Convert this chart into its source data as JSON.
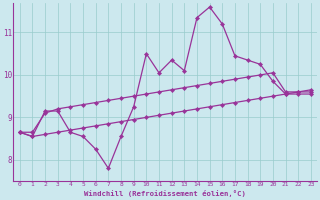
{
  "xlabel": "Windchill (Refroidissement éolien,°C)",
  "bg_color": "#cce8ee",
  "line_color": "#993399",
  "grid_color": "#99cccc",
  "xlim": [
    -0.5,
    23.5
  ],
  "ylim": [
    7.5,
    11.7
  ],
  "yticks": [
    8,
    9,
    10,
    11
  ],
  "xticks": [
    0,
    1,
    2,
    3,
    4,
    5,
    6,
    7,
    8,
    9,
    10,
    11,
    12,
    13,
    14,
    15,
    16,
    17,
    18,
    19,
    20,
    21,
    22,
    23
  ],
  "series1_x": [
    0,
    1,
    2,
    3,
    4,
    5,
    6,
    7,
    8,
    9,
    10,
    11,
    12,
    13,
    14,
    15,
    16,
    17,
    18,
    19,
    20,
    21,
    22,
    23
  ],
  "series1_y": [
    8.65,
    8.55,
    9.15,
    9.15,
    8.65,
    8.55,
    8.25,
    7.8,
    8.55,
    9.25,
    10.5,
    10.05,
    10.35,
    10.1,
    11.35,
    11.6,
    11.2,
    10.45,
    10.35,
    10.25,
    9.85,
    9.55,
    9.55,
    9.55
  ],
  "series2_x": [
    0,
    1,
    2,
    3,
    4,
    5,
    6,
    7,
    8,
    9,
    10,
    11,
    12,
    13,
    14,
    15,
    16,
    17,
    18,
    19,
    20,
    21,
    22,
    23
  ],
  "series2_y": [
    8.65,
    8.65,
    9.1,
    9.2,
    9.25,
    9.3,
    9.35,
    9.4,
    9.45,
    9.5,
    9.55,
    9.6,
    9.65,
    9.7,
    9.75,
    9.8,
    9.85,
    9.9,
    9.95,
    10.0,
    10.05,
    9.6,
    9.6,
    9.6
  ],
  "series3_x": [
    0,
    1,
    2,
    3,
    4,
    5,
    6,
    7,
    8,
    9,
    10,
    11,
    12,
    13,
    14,
    15,
    16,
    17,
    18,
    19,
    20,
    21,
    22,
    23
  ],
  "series3_y": [
    8.65,
    8.55,
    8.6,
    8.65,
    8.7,
    8.75,
    8.8,
    8.85,
    8.9,
    8.95,
    9.0,
    9.05,
    9.1,
    9.15,
    9.2,
    9.25,
    9.3,
    9.35,
    9.4,
    9.45,
    9.5,
    9.55,
    9.6,
    9.65
  ]
}
